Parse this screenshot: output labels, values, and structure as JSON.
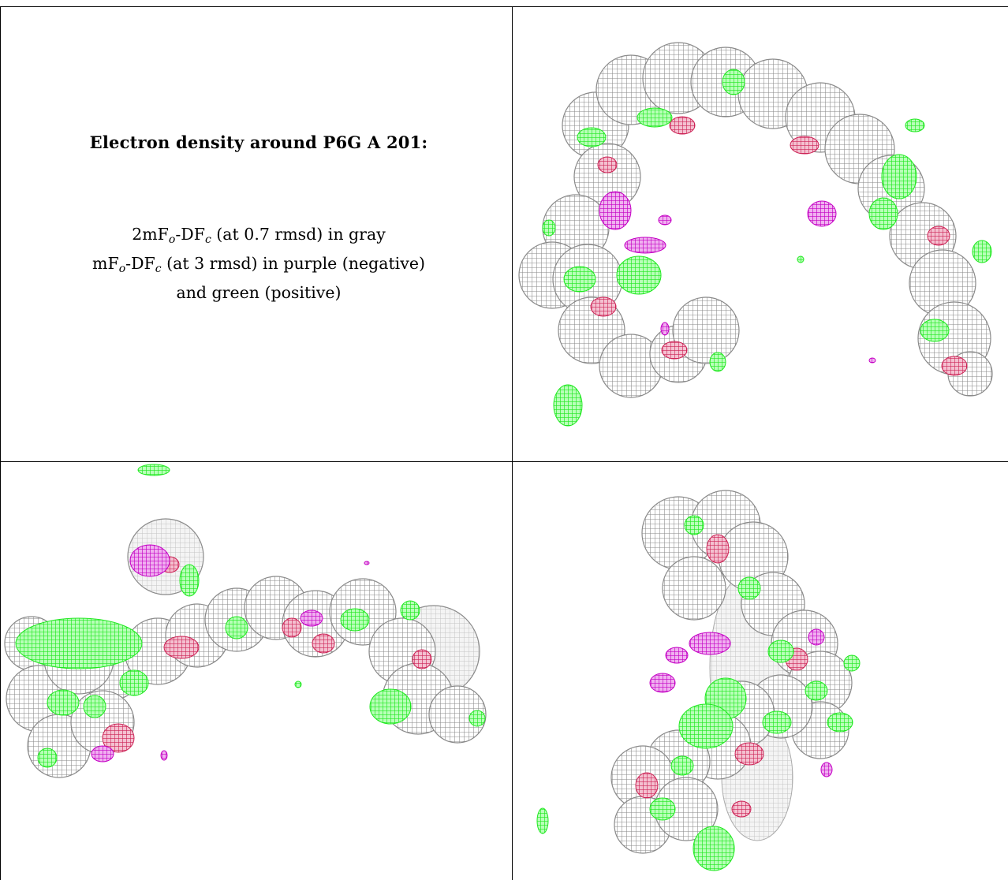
{
  "caption": {
    "title": "Electron density around P6G A 201:",
    "line1_a": "2mF",
    "line1_sub1": "o",
    "line1_b": "-DF",
    "line1_sub2": "c",
    "line1_c": " (at 0.7 rmsd) in gray",
    "line2_a": "mF",
    "line2_sub1": "o",
    "line2_b": "-DF",
    "line2_sub2": "c",
    "line2_c": " (at 3 rmsd) in purple (negative)",
    "line3": "and green (positive)"
  },
  "views": [
    {
      "name": "view-top-right"
    },
    {
      "name": "view-bottom-left"
    },
    {
      "name": "view-bottom-right"
    }
  ],
  "colors": {
    "map_2fofc": "#8a8a8a",
    "map_fofc_negative": "#cc00cc",
    "map_fofc_positive": "#22ee22",
    "ligand_core": "#cc2255"
  }
}
